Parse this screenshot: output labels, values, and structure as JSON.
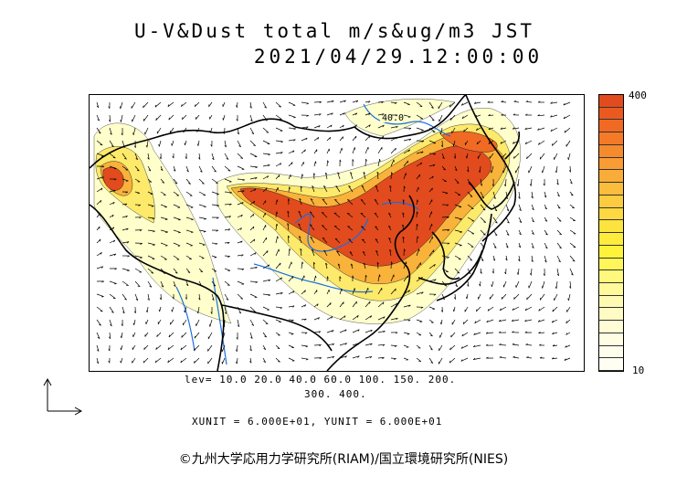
{
  "title": {
    "line1": "U-V&Dust total m/s&ug/m3 JST",
    "line2": "2021/04/29.12:00:00"
  },
  "map": {
    "contour_label": "40.0",
    "shading_colors": [
      "#ffffcc",
      "#fff3a0",
      "#fde96a",
      "#fcd748",
      "#f9b23a",
      "#f58d2d",
      "#ee6a24",
      "#e24b1d"
    ],
    "coastline_color": "#000000",
    "river_color": "#1a6fe0"
  },
  "colorbar": {
    "max_label": "400",
    "min_label": "10",
    "colors": [
      "#e24b1d",
      "#ea5a20",
      "#f06a24",
      "#f47a28",
      "#f68b2d",
      "#f89c33",
      "#f9ac38",
      "#fbbd3c",
      "#fccb3f",
      "#fdd840",
      "#fde33e",
      "#feec3c",
      "#fff23a",
      "#fff75a",
      "#fff87e",
      "#fff99a",
      "#fffab2",
      "#fffbc5",
      "#fffcd6",
      "#fffde3",
      "#fffeec",
      "#fffef3"
    ]
  },
  "levels": {
    "line1": "lev= 10.0 20.0 40.0 60.0 100. 150. 200.",
    "line2": "300. 400."
  },
  "units": "XUNIT = 6.000E+01, YUNIT = 6.000E+01",
  "copyright": "©九州大学応用力学研究所(RIAM)/国立環境研究所(NIES)"
}
